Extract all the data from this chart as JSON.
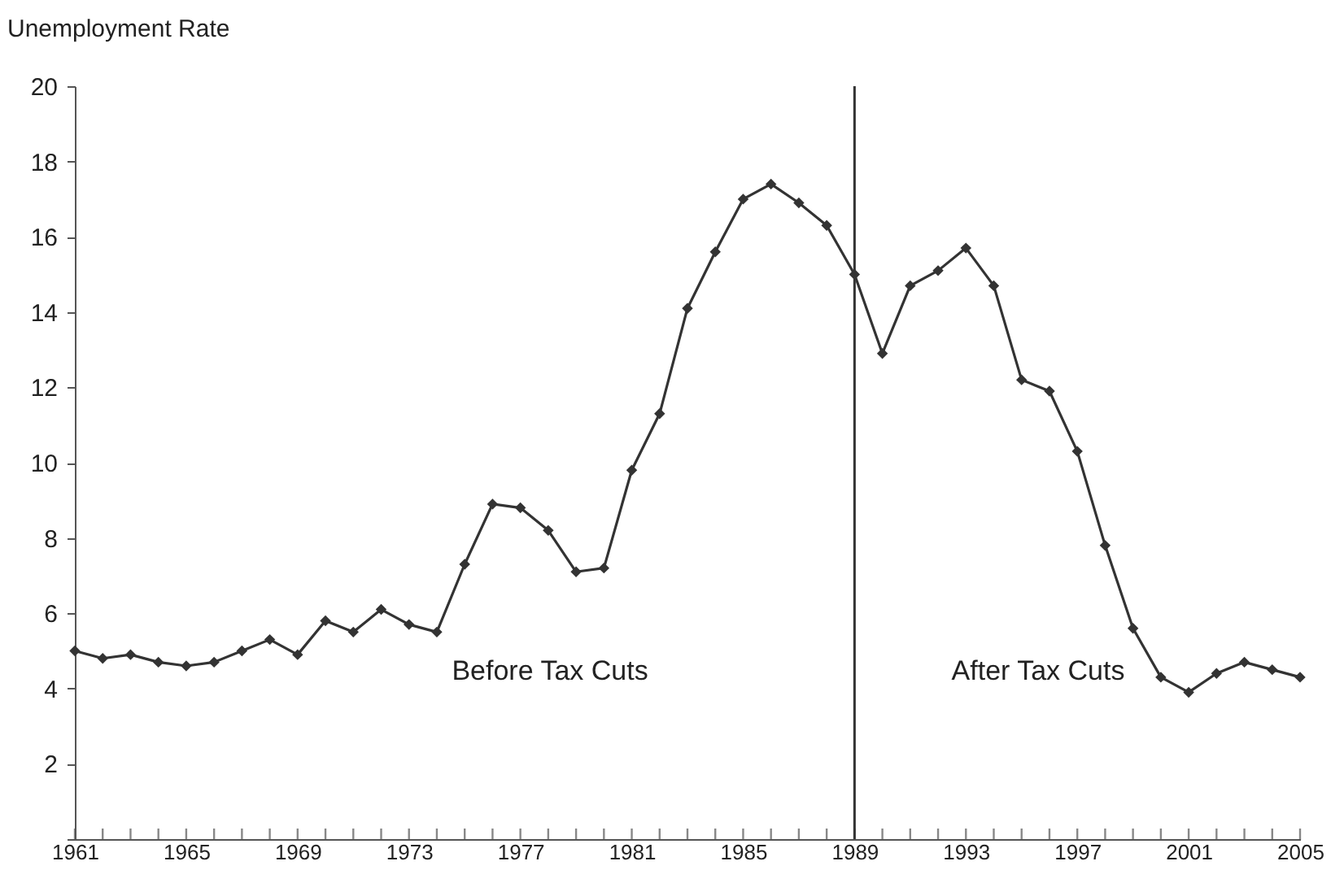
{
  "chart_data": {
    "type": "line",
    "ylabel": "Unemployment Rate",
    "x": [
      1961,
      1962,
      1963,
      1964,
      1965,
      1966,
      1967,
      1968,
      1969,
      1970,
      1971,
      1972,
      1973,
      1974,
      1975,
      1976,
      1977,
      1978,
      1979,
      1980,
      1981,
      1982,
      1983,
      1984,
      1985,
      1986,
      1987,
      1988,
      1989,
      1990,
      1991,
      1992,
      1993,
      1994,
      1995,
      1996,
      1997,
      1998,
      1999,
      2000,
      2001,
      2002,
      2003,
      2004,
      2005
    ],
    "series": [
      {
        "color": "#333333",
        "values": [
          5.0,
          4.8,
          4.9,
          4.7,
          4.6,
          4.7,
          5.0,
          5.3,
          4.9,
          5.8,
          5.5,
          6.1,
          5.7,
          5.5,
          7.3,
          8.9,
          8.8,
          8.2,
          7.1,
          7.2,
          9.8,
          11.3,
          14.1,
          15.6,
          17.0,
          17.4,
          16.9,
          16.3,
          15.0,
          12.9,
          14.7,
          15.1,
          15.7,
          14.7,
          12.2,
          11.9,
          10.3,
          7.8,
          5.6,
          4.3,
          3.9,
          4.4,
          4.7,
          4.5,
          4.3
        ]
      }
    ],
    "marker": "diamond",
    "line_style": "solid",
    "grid": false,
    "xlim": [
      1961,
      2005
    ],
    "ylim": [
      0,
      20
    ],
    "yticks": [
      {
        "value": 0,
        "label": null
      },
      2,
      4,
      6,
      8,
      10,
      12,
      14,
      16,
      18,
      20
    ],
    "xticks": [
      1961,
      {
        "value": 1962,
        "label": null
      },
      {
        "value": 1963,
        "label": null
      },
      {
        "value": 1964,
        "label": null
      },
      1965,
      {
        "value": 1966,
        "label": null
      },
      {
        "value": 1967,
        "label": null
      },
      {
        "value": 1968,
        "label": null
      },
      1969,
      {
        "value": 1970,
        "label": null
      },
      {
        "value": 1971,
        "label": null
      },
      {
        "value": 1972,
        "label": null
      },
      1973,
      {
        "value": 1974,
        "label": null
      },
      {
        "value": 1975,
        "label": null
      },
      {
        "value": 1976,
        "label": null
      },
      1977,
      {
        "value": 1978,
        "label": null
      },
      {
        "value": 1979,
        "label": null
      },
      {
        "value": 1980,
        "label": null
      },
      1981,
      {
        "value": 1982,
        "label": null
      },
      {
        "value": 1983,
        "label": null
      },
      {
        "value": 1984,
        "label": null
      },
      1985,
      {
        "value": 1986,
        "label": null
      },
      {
        "value": 1987,
        "label": null
      },
      {
        "value": 1988,
        "label": null
      },
      1989,
      {
        "value": 1990,
        "label": null
      },
      {
        "value": 1991,
        "label": null
      },
      {
        "value": 1992,
        "label": null
      },
      1993,
      {
        "value": 1994,
        "label": null
      },
      {
        "value": 1995,
        "label": null
      },
      {
        "value": 1996,
        "label": null
      },
      1997,
      {
        "value": 1998,
        "label": null
      },
      {
        "value": 1999,
        "label": null
      },
      {
        "value": 2000,
        "label": null
      },
      2001,
      {
        "value": 2002,
        "label": null
      },
      {
        "value": 2003,
        "label": null
      },
      {
        "value": 2004,
        "label": null
      },
      2005
    ],
    "ref_lines": [
      {
        "axis": "x",
        "value": 1989,
        "color": "#333333"
      }
    ],
    "annotations": [
      "Before Tax Cuts",
      "After Tax Cuts"
    ]
  }
}
